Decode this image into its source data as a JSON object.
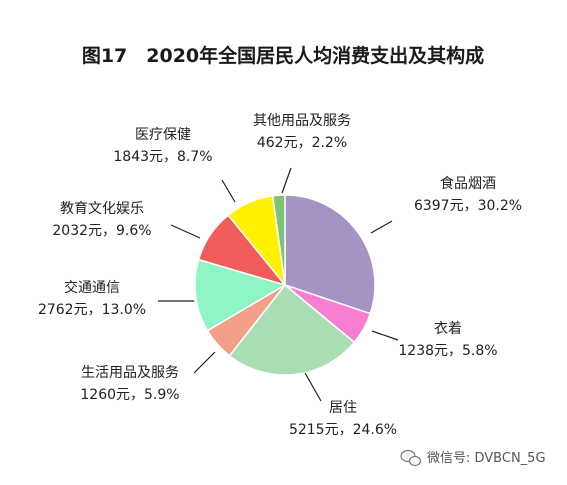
{
  "chart_data": {
    "type": "pie",
    "title": "图17　2020年全国居民人均消费支出及其构成",
    "value_unit": "元",
    "slices": [
      {
        "name": "食品烟酒",
        "value": 6397,
        "percent": 30.2,
        "label": "6397元，30.2%",
        "color": "#A493C4"
      },
      {
        "name": "衣着",
        "value": 1238,
        "percent": 5.8,
        "label": "1238元，5.8%",
        "color": "#F77FD2"
      },
      {
        "name": "居住",
        "value": 5215,
        "percent": 24.6,
        "label": "5215元，24.6%",
        "color": "#A9DDB3"
      },
      {
        "name": "生活用品及服务",
        "value": 1260,
        "percent": 5.9,
        "label": "1260元，5.9%",
        "color": "#F2A088"
      },
      {
        "name": "交通通信",
        "value": 2762,
        "percent": 13.0,
        "label": "2762元，13.0%",
        "color": "#8FF5C4"
      },
      {
        "name": "教育文化娱乐",
        "value": 2032,
        "percent": 9.6,
        "label": "2032元，9.6%",
        "color": "#F05C5C"
      },
      {
        "name": "医疗保健",
        "value": 1843,
        "percent": 8.7,
        "label": "1843元，8.7%",
        "color": "#FFF200"
      },
      {
        "name": "其他用品及服务",
        "value": 462,
        "percent": 2.2,
        "label": "462元，2.2%",
        "color": "#7CC576"
      }
    ]
  },
  "watermark": {
    "text": "微信号: DVBCN_5G",
    "icon": "wechat-icon"
  }
}
